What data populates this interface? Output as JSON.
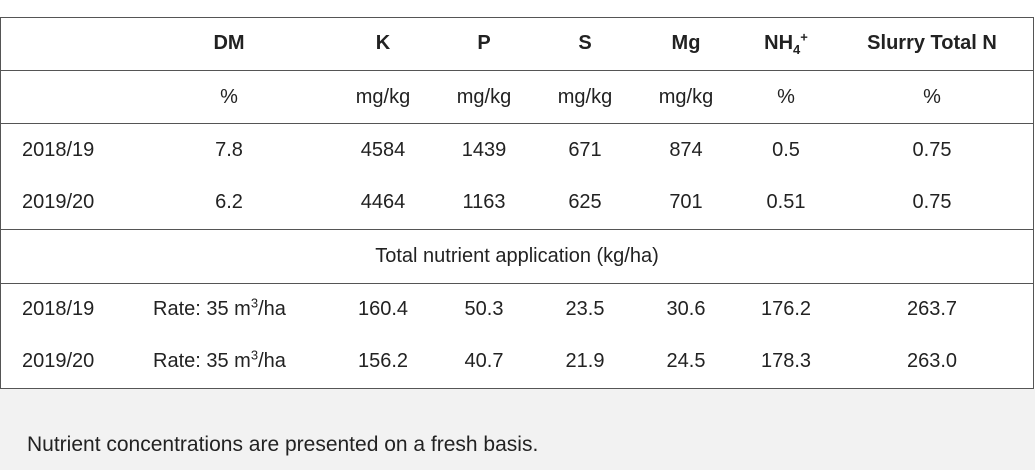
{
  "table": {
    "header": [
      "DM",
      "K",
      "P",
      "S",
      "Mg",
      {
        "base": "NH",
        "sub": "4",
        "sup": "+"
      },
      "Slurry Total N"
    ],
    "units": [
      "%",
      "mg/kg",
      "mg/kg",
      "mg/kg",
      "mg/kg",
      "%",
      "%"
    ],
    "rows": [
      [
        "2018/19",
        "7.8",
        "4584",
        "1439",
        "671",
        "874",
        "0.5",
        "0.75"
      ],
      [
        "2019/20",
        "6.2",
        "4464",
        "1163",
        "625",
        "701",
        "0.51",
        "0.75"
      ]
    ],
    "section": "Total nutrient application (kg/ha)",
    "application_rows": [
      [
        "2018/19",
        {
          "base": "Rate: 35 m",
          "sup": "3",
          "after": "/ha"
        },
        "160.4",
        "50.3",
        "23.5",
        "30.6",
        "176.2",
        "263.7"
      ],
      [
        "2019/20",
        {
          "base": "Rate: 35 m",
          "sup": "3",
          "after": "/ha"
        },
        "156.2",
        "40.7",
        "21.9",
        "24.5",
        "178.3",
        "263.0"
      ]
    ]
  },
  "footnote": "Nutrient concentrations are presented on a fresh basis."
}
